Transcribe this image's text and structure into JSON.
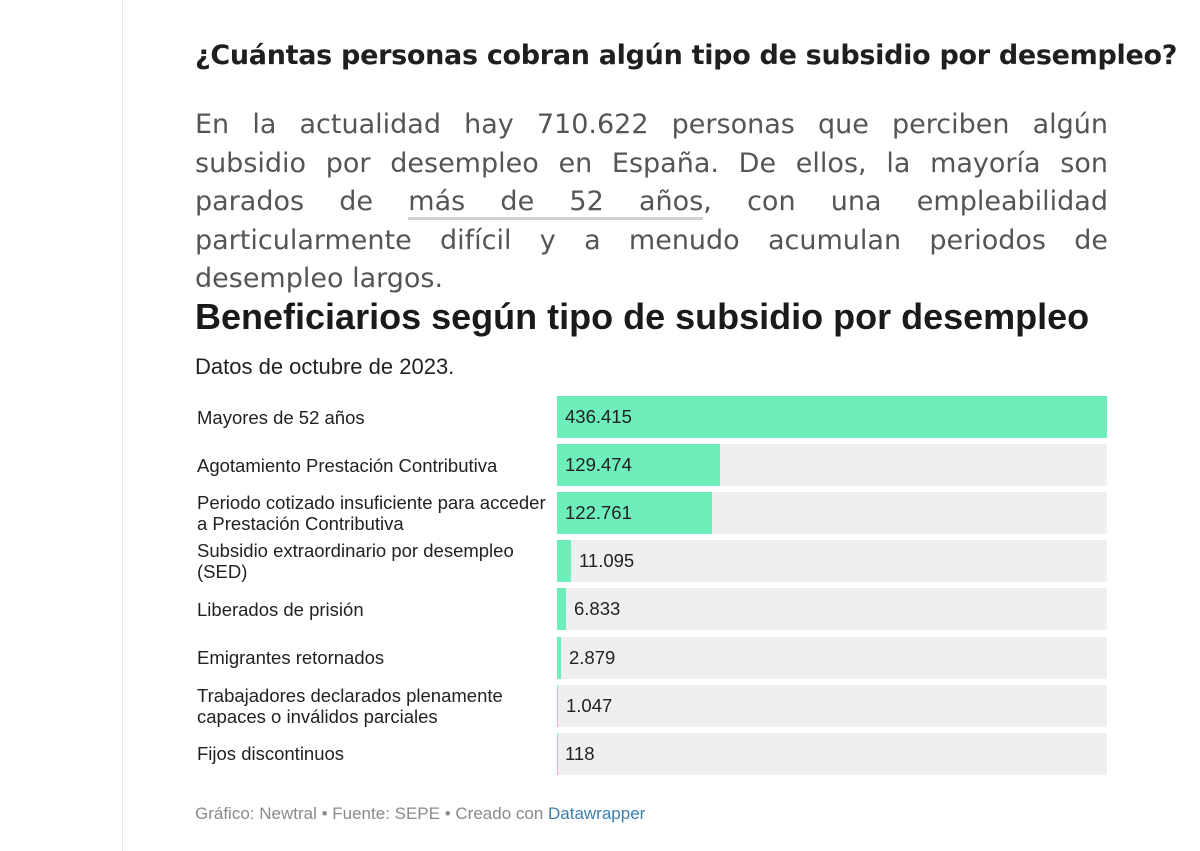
{
  "article": {
    "heading": "¿Cuántas personas cobran algún tipo de subsidio por desempleo?",
    "paragraph_part1": "En la actualidad hay 710.622 personas que perciben algún subsidio por desempleo en España. De ellos, la mayoría son parados de ",
    "paragraph_link": "más de 52 años",
    "paragraph_part2": ", con una empleabilidad particularmente difícil y a menudo acumulan periodos de desempleo largos."
  },
  "chart_data": {
    "type": "bar",
    "orientation": "horizontal",
    "title": "Beneficiarios según tipo de subsidio por desempleo",
    "subtitle": "Datos de octubre de 2023.",
    "categories": [
      "Mayores de 52 años",
      "Agotamiento Prestación Contributiva",
      "Periodo cotizado insuficiente para acceder a Prestación Contributiva",
      "Subsidio extraordinario por desempleo (SED)",
      "Liberados de prisión",
      "Emigrantes retornados",
      "Trabajadores declarados plenamente capaces o inválidos parciales",
      "Fijos discontinuos"
    ],
    "values": [
      436415,
      129474,
      122761,
      11095,
      6833,
      2879,
      1047,
      118
    ],
    "value_labels": [
      "436.415",
      "129.474",
      "122.761",
      "11.095",
      "6.833",
      "2.879",
      "1.047",
      "118"
    ],
    "xlim": [
      0,
      436415
    ],
    "bar_color": "#6deebb",
    "track_color": "#efefef",
    "xlabel": "",
    "ylabel": ""
  },
  "footer": {
    "credit_text": "Gráfico: Newtral • Fuente: SEPE • Creado con ",
    "link_text": "Datawrapper"
  }
}
